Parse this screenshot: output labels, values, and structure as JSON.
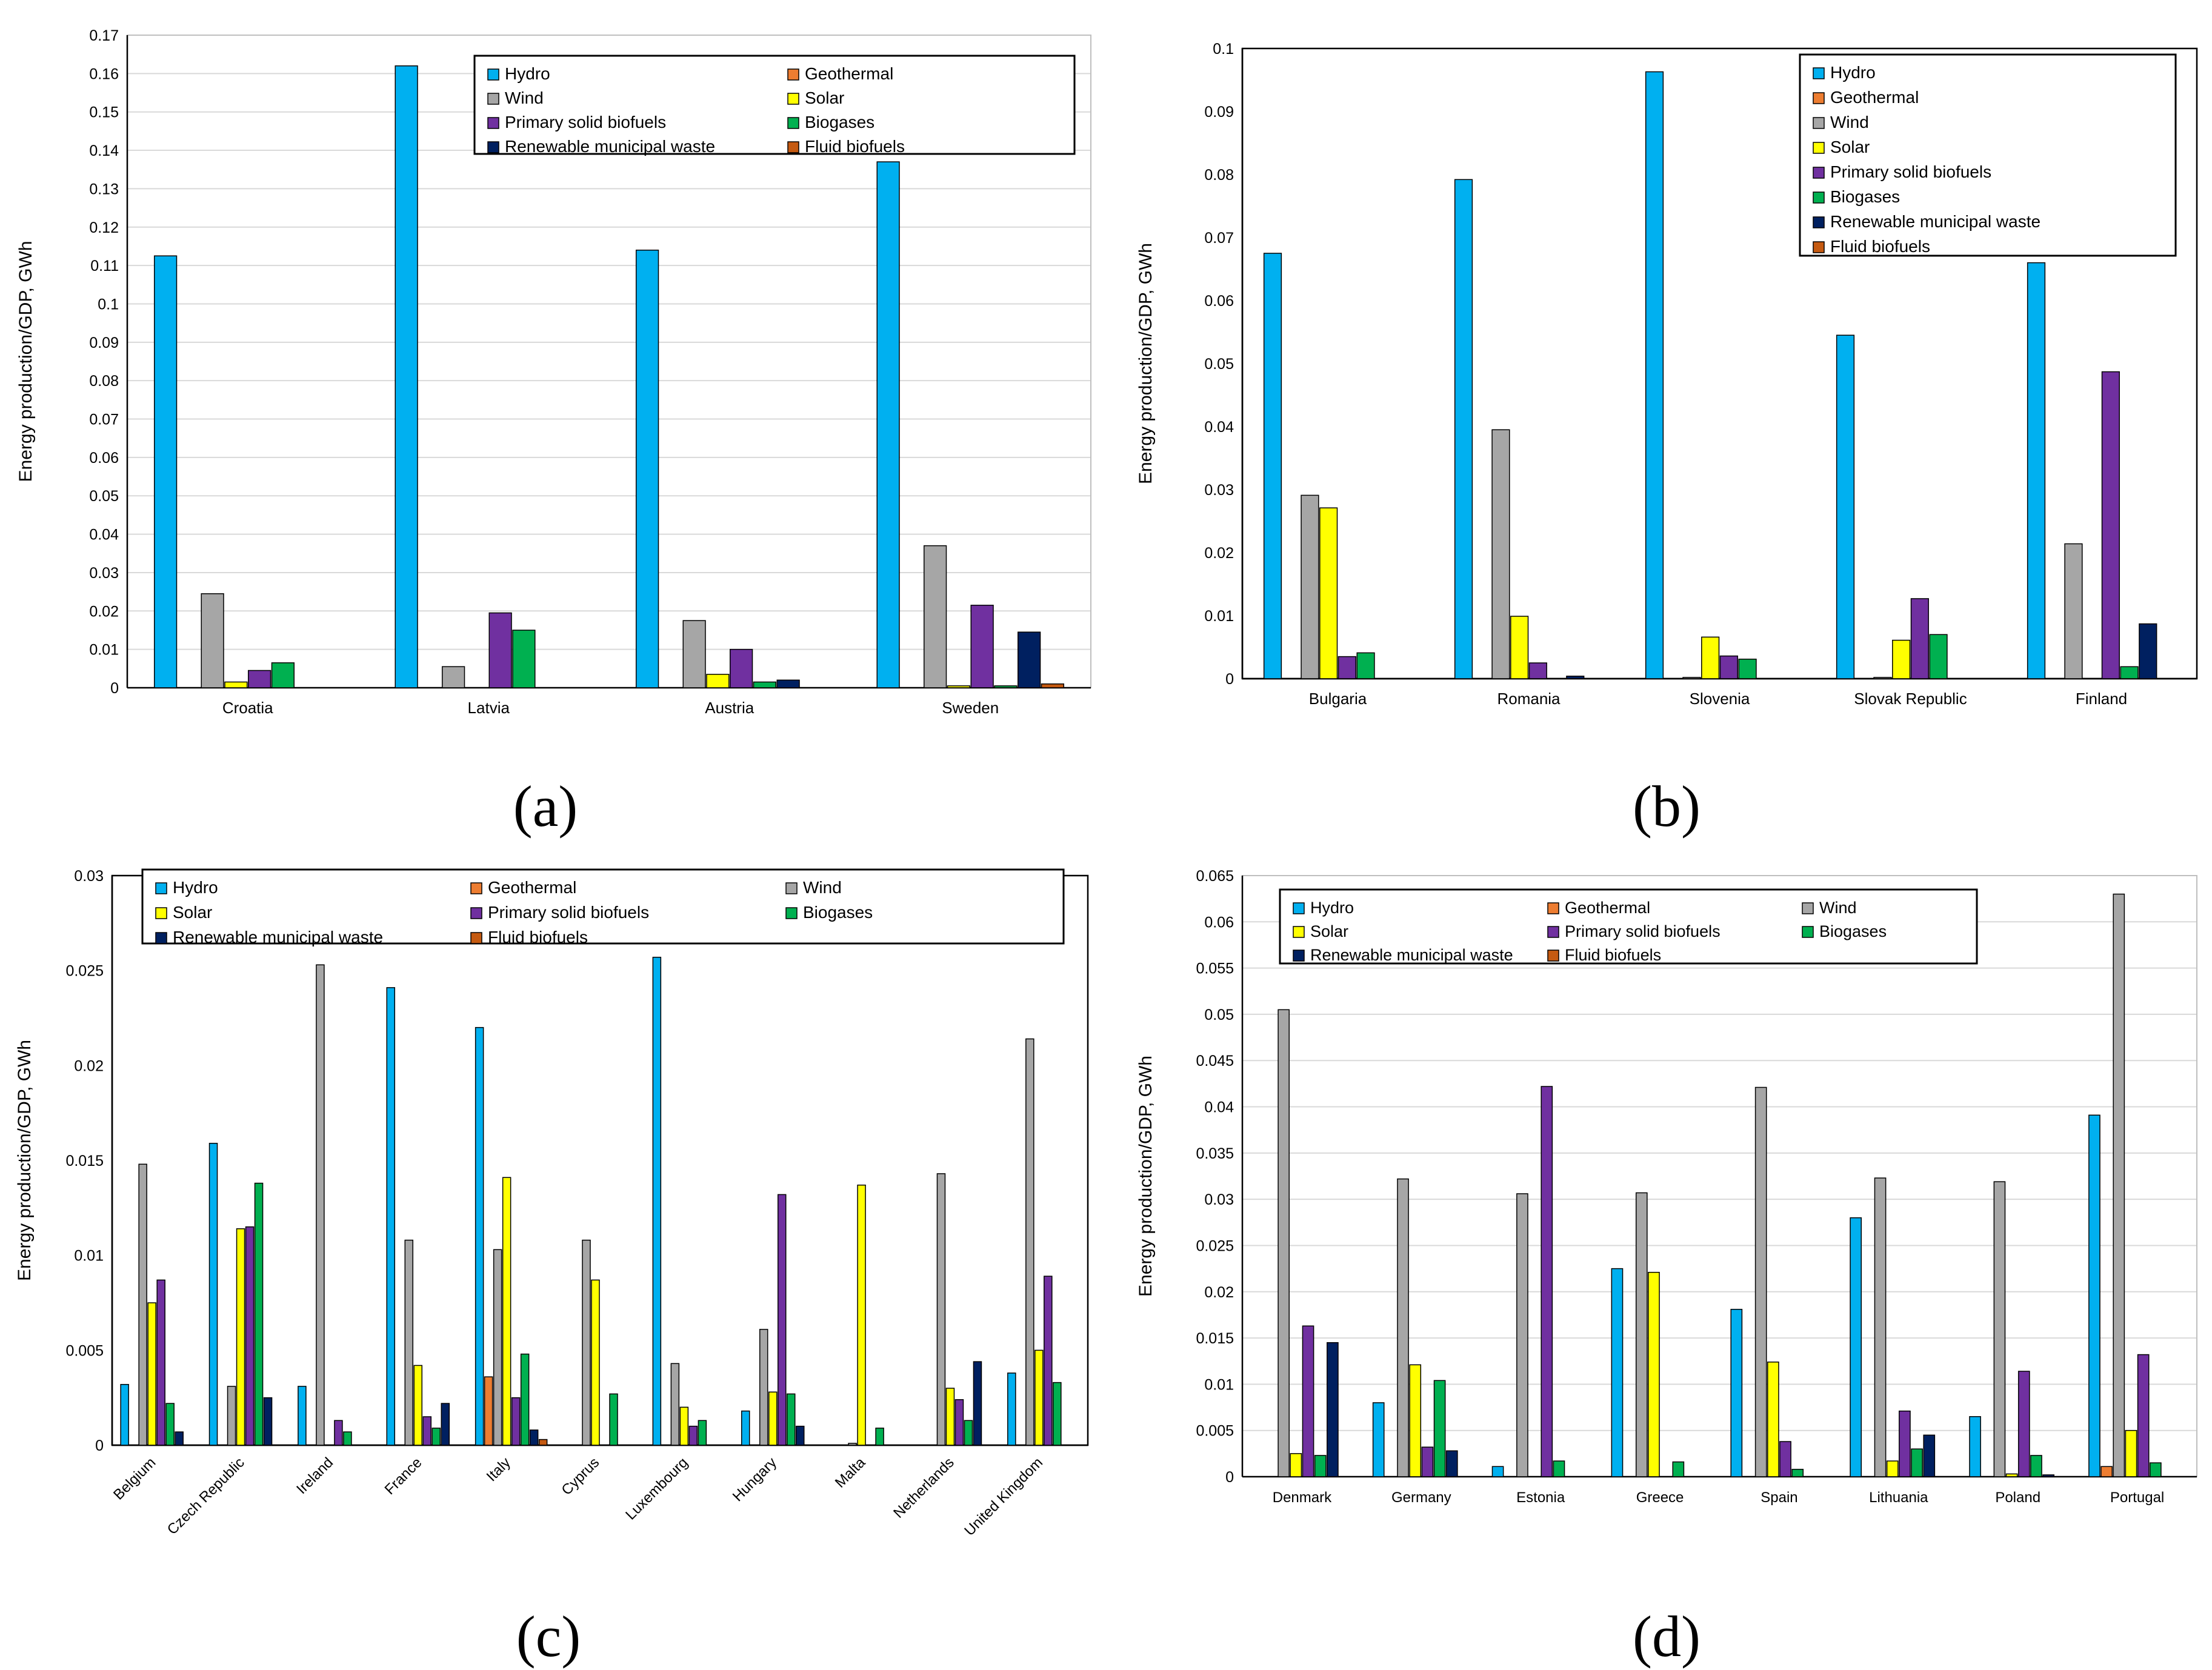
{
  "figure": {
    "series_colors": {
      "Hydro": "#00B0F0",
      "Geothermal": "#ED7D31",
      "Wind": "#A6A6A6",
      "Solar": "#FFFF00",
      "Primary solid biofuels": "#7030A0",
      "Biogases": "#00B050",
      "Renewable municipal waste": "#002060",
      "Fluid biofuels": "#C55A11"
    }
  },
  "chart_data": [
    {
      "id": "a",
      "caption": "(a)",
      "type": "bar",
      "title": "",
      "xlabel": "",
      "ylabel": "Energy production/GDP, GWh",
      "ylim": [
        0,
        0.17
      ],
      "ytick_step": 0.01,
      "yticks": [
        "0",
        "0.01",
        "0.02",
        "0.03",
        "0.04",
        "0.05",
        "0.06",
        "0.07",
        "0.08",
        "0.09",
        "0.1",
        "0.11",
        "0.12",
        "0.13",
        "0.14",
        "0.15",
        "0.16",
        "0.17"
      ],
      "grid": true,
      "legend_position": "top-right",
      "legend_order": [
        "Hydro",
        "Geothermal",
        "Wind",
        "Solar",
        "Primary solid biofuels",
        "Biogases",
        "Renewable municipal waste",
        "Fluid biofuels"
      ],
      "legend_cols": 2,
      "categories": [
        "Croatia",
        "Latvia",
        "Austria",
        "Sweden"
      ],
      "series": [
        {
          "name": "Hydro",
          "values": [
            0.1125,
            0.162,
            0.114,
            0.137
          ]
        },
        {
          "name": "Geothermal",
          "values": [
            0,
            0,
            0,
            0
          ]
        },
        {
          "name": "Wind",
          "values": [
            0.0245,
            0.0055,
            0.0175,
            0.037
          ]
        },
        {
          "name": "Solar",
          "values": [
            0.0015,
            0,
            0.0035,
            0.0005
          ]
        },
        {
          "name": "Primary solid biofuels",
          "values": [
            0.0045,
            0.0195,
            0.01,
            0.0215
          ]
        },
        {
          "name": "Biogases",
          "values": [
            0.0065,
            0.015,
            0.0015,
            0.0005
          ]
        },
        {
          "name": "Renewable municipal waste",
          "values": [
            0,
            0,
            0.002,
            0.0145
          ]
        },
        {
          "name": "Fluid biofuels",
          "values": [
            0,
            0,
            0,
            0.001
          ]
        }
      ]
    },
    {
      "id": "b",
      "caption": "(b)",
      "type": "bar",
      "title": "",
      "xlabel": "",
      "ylabel": "Energy production/GDP, GWh",
      "ylim": [
        0,
        0.1
      ],
      "ytick_step": 0.01,
      "yticks": [
        "0",
        "0.01",
        "0.02",
        "0.03",
        "0.04",
        "0.05",
        "0.06",
        "0.07",
        "0.08",
        "0.09",
        "0.1"
      ],
      "grid": false,
      "legend_position": "top-right",
      "legend_order": [
        "Hydro",
        "Geothermal",
        "Wind",
        "Solar",
        "Primary solid biofuels",
        "Biogases",
        "Renewable municipal waste",
        "Fluid biofuels"
      ],
      "legend_cols": 1,
      "categories": [
        "Bulgaria",
        "Romania",
        "Slovenia",
        "Slovak Republic",
        "Finland"
      ],
      "series": [
        {
          "name": "Hydro",
          "values": [
            0.0675,
            0.0792,
            0.0963,
            0.0545,
            0.066
          ]
        },
        {
          "name": "Geothermal",
          "values": [
            0,
            0,
            0,
            0,
            0
          ]
        },
        {
          "name": "Wind",
          "values": [
            0.0291,
            0.0395,
            0.0002,
            0.0002,
            0.0214
          ]
        },
        {
          "name": "Solar",
          "values": [
            0.0271,
            0.0099,
            0.0066,
            0.0061,
            0
          ]
        },
        {
          "name": "Primary solid biofuels",
          "values": [
            0.0035,
            0.0025,
            0.0036,
            0.0127,
            0.0487
          ]
        },
        {
          "name": "Biogases",
          "values": [
            0.0041,
            0,
            0.0031,
            0.007,
            0.0019
          ]
        },
        {
          "name": "Renewable municipal waste",
          "values": [
            0,
            0.0004,
            0,
            0,
            0.0087
          ]
        },
        {
          "name": "Fluid biofuels",
          "values": [
            0,
            0,
            0,
            0,
            0
          ]
        }
      ]
    },
    {
      "id": "c",
      "caption": "(c)",
      "type": "bar",
      "title": "",
      "xlabel": "",
      "ylabel": "Energy production/GDP, GWh",
      "ylim": [
        0,
        0.03
      ],
      "ytick_step": 0.005,
      "yticks": [
        "0",
        "0.005",
        "0.01",
        "0.015",
        "0.02",
        "0.025",
        "0.03"
      ],
      "grid": false,
      "legend_position": "top",
      "legend_order": [
        "Hydro",
        "Geothermal",
        "Wind",
        "Solar",
        "Primary solid biofuels",
        "Biogases",
        "Renewable municipal waste",
        "Fluid biofuels"
      ],
      "legend_cols": 3,
      "categories": [
        "Belgium",
        "Czech Republic",
        "Ireland",
        "France",
        "Italy",
        "Cyprus",
        "Luxembourg",
        "Hungary",
        "Malta",
        "Netherlands",
        "United Kingdom"
      ],
      "series": [
        {
          "name": "Hydro",
          "values": [
            0.0032,
            0.0159,
            0.0031,
            0.0241,
            0.022,
            0,
            0.0257,
            0.0018,
            0,
            0,
            0.0038
          ]
        },
        {
          "name": "Geothermal",
          "values": [
            0,
            0,
            0,
            0,
            0.0036,
            0,
            0,
            0,
            0,
            0,
            0
          ]
        },
        {
          "name": "Wind",
          "values": [
            0.0148,
            0.0031,
            0.0253,
            0.0108,
            0.0103,
            0.0108,
            0.0043,
            0.0061,
            0.0001,
            0.0143,
            0.0214
          ]
        },
        {
          "name": "Solar",
          "values": [
            0.0075,
            0.0114,
            0,
            0.0042,
            0.0141,
            0.0087,
            0.002,
            0.0028,
            0.0137,
            0.003,
            0.005
          ]
        },
        {
          "name": "Primary solid biofuels",
          "values": [
            0.0087,
            0.0115,
            0.0013,
            0.0015,
            0.0025,
            0,
            0.001,
            0.0132,
            0,
            0.0024,
            0.0089
          ]
        },
        {
          "name": "Biogases",
          "values": [
            0.0022,
            0.0138,
            0.0007,
            0.0009,
            0.0048,
            0.0027,
            0.0013,
            0.0027,
            0.0009,
            0.0013,
            0.0033
          ]
        },
        {
          "name": "Renewable municipal waste",
          "values": [
            0.0007,
            0.0025,
            0,
            0.0022,
            0.0008,
            0,
            0,
            0.001,
            0,
            0.0044,
            0
          ]
        },
        {
          "name": "Fluid biofuels",
          "values": [
            0,
            0,
            0,
            0,
            0.0003,
            0,
            0,
            0,
            0,
            0,
            0
          ]
        }
      ]
    },
    {
      "id": "d",
      "caption": "(d)",
      "type": "bar",
      "title": "",
      "xlabel": "",
      "ylabel": "Energy production/GDP, GWh",
      "ylim": [
        0,
        0.065
      ],
      "ytick_step": 0.005,
      "yticks": [
        "0",
        "0.005",
        "0.01",
        "0.015",
        "0.02",
        "0.025",
        "0.03",
        "0.035",
        "0.04",
        "0.045",
        "0.05",
        "0.055",
        "0.06",
        "0.065"
      ],
      "grid": true,
      "legend_position": "top",
      "legend_order": [
        "Hydro",
        "Geothermal",
        "Wind",
        "Solar",
        "Primary solid biofuels",
        "Biogases",
        "Renewable municipal waste",
        "Fluid biofuels"
      ],
      "legend_cols": 3,
      "categories": [
        "Denmark",
        "Germany",
        "Estonia",
        "Greece",
        "Spain",
        "Lithuania",
        "Poland",
        "Portugal"
      ],
      "series": [
        {
          "name": "Hydro",
          "values": [
            0,
            0.008,
            0.0011,
            0.0225,
            0.0181,
            0.028,
            0.0065,
            0.0391
          ]
        },
        {
          "name": "Geothermal",
          "values": [
            0,
            0,
            0,
            0,
            0,
            0,
            0,
            0.0011
          ]
        },
        {
          "name": "Wind",
          "values": [
            0.0505,
            0.0322,
            0.0306,
            0.0307,
            0.0421,
            0.0323,
            0.0319,
            0.063
          ]
        },
        {
          "name": "Solar",
          "values": [
            0.0025,
            0.0121,
            0,
            0.0221,
            0.0124,
            0.0017,
            0.0003,
            0.005
          ]
        },
        {
          "name": "Primary solid biofuels",
          "values": [
            0.0163,
            0.0032,
            0.0422,
            0,
            0.0038,
            0.0071,
            0.0114,
            0.0132
          ]
        },
        {
          "name": "Biogases",
          "values": [
            0.0023,
            0.0104,
            0.0017,
            0.0016,
            0.0008,
            0.003,
            0.0023,
            0.0015
          ]
        },
        {
          "name": "Renewable municipal waste",
          "values": [
            0.0145,
            0.0028,
            0,
            0,
            0,
            0.0045,
            0.0002,
            0
          ]
        },
        {
          "name": "Fluid biofuels",
          "values": [
            0,
            0,
            0,
            0,
            0,
            0,
            0,
            0
          ]
        }
      ]
    }
  ]
}
